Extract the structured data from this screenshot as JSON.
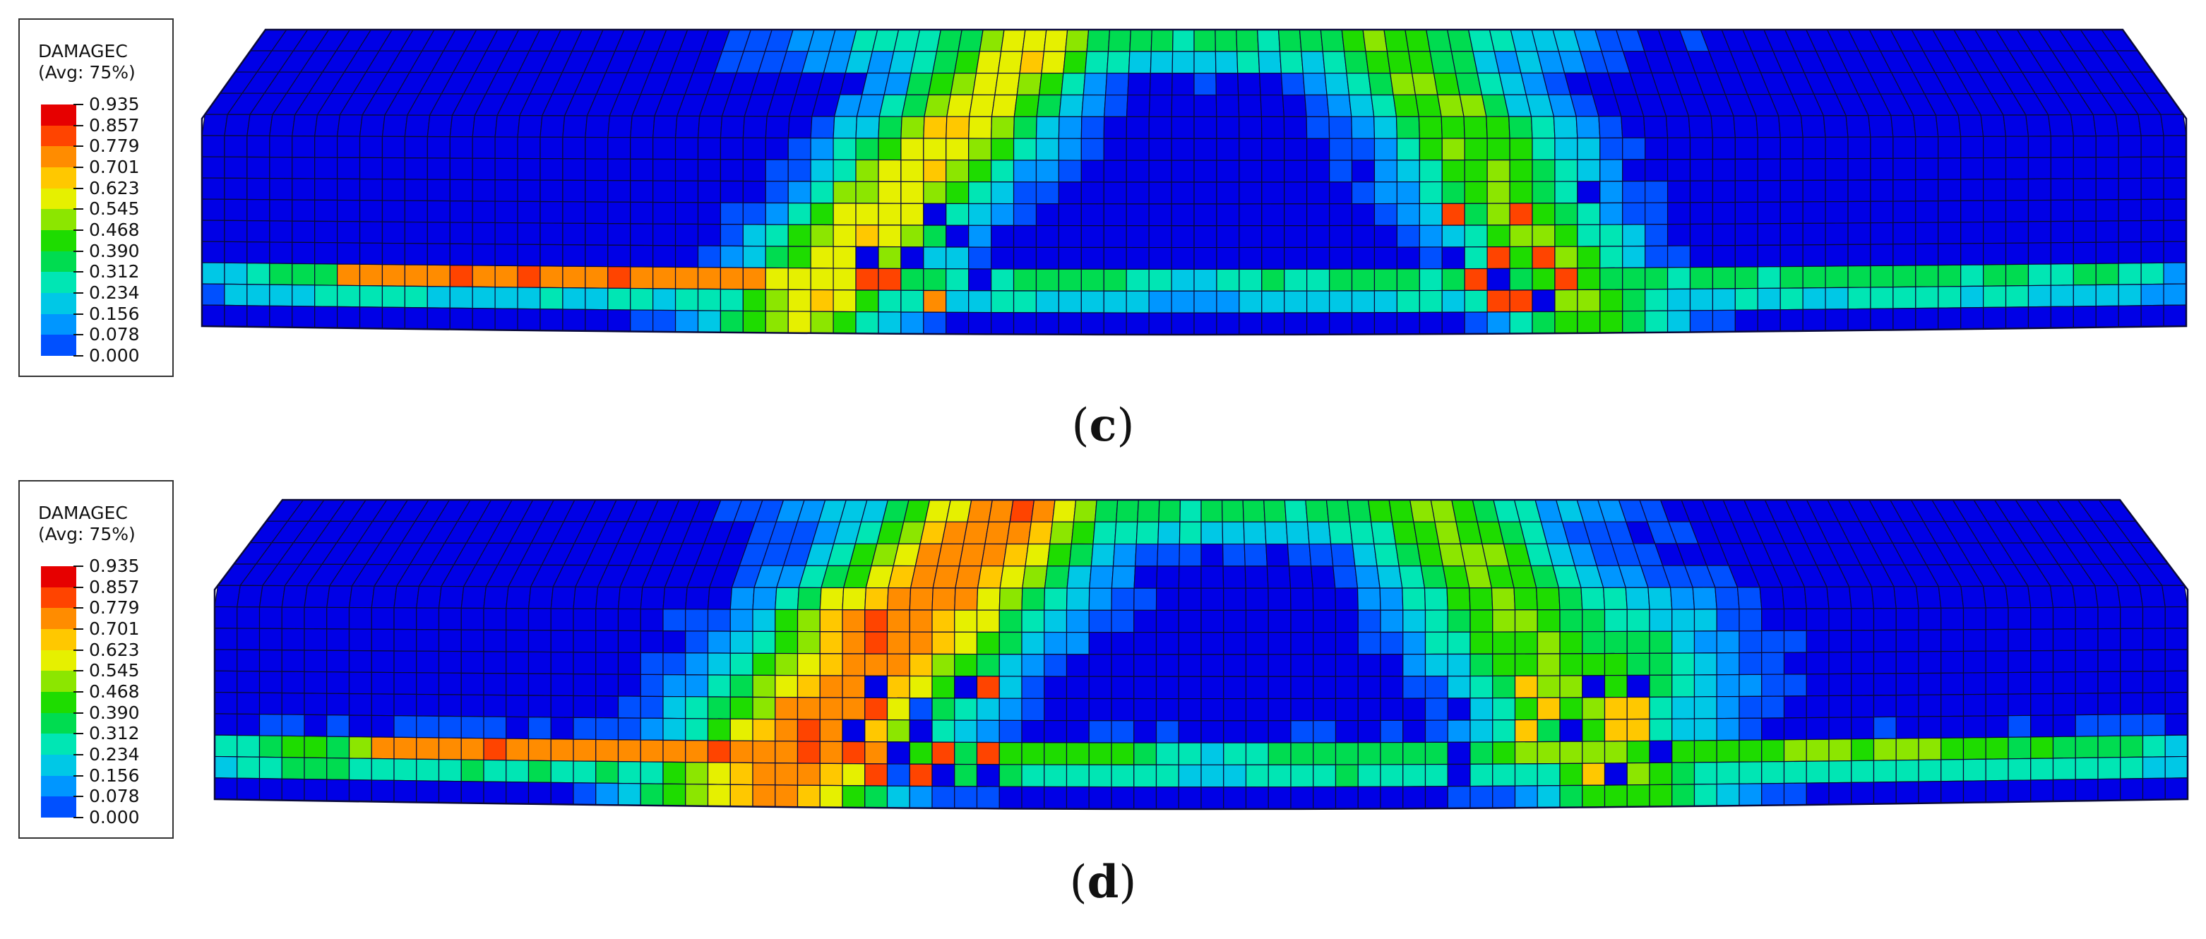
{
  "legend": {
    "title_line1": "DAMAGEC",
    "title_line2": "(Avg: 75%)",
    "ticks": [
      "0.935",
      "0.857",
      "0.779",
      "0.701",
      "0.623",
      "0.545",
      "0.468",
      "0.390",
      "0.312",
      "0.234",
      "0.156",
      "0.078",
      "0.000"
    ],
    "colors": [
      "#e60000",
      "#ff4400",
      "#ff8c00",
      "#ffc800",
      "#e6f000",
      "#8ce600",
      "#1edc00",
      "#00dc50",
      "#00e6b4",
      "#00c8e6",
      "#0096ff",
      "#0050ff",
      "#0000e6"
    ]
  },
  "panels": [
    {
      "id": "c",
      "caption_open": "(",
      "caption_letter": "c",
      "caption_close": ")"
    },
    {
      "id": "d",
      "caption_open": "(",
      "caption_letter": "d",
      "caption_close": ")"
    }
  ],
  "colors": {
    "mesh_line": "#0a0a3a",
    "background_damage": "#0000e6"
  }
}
